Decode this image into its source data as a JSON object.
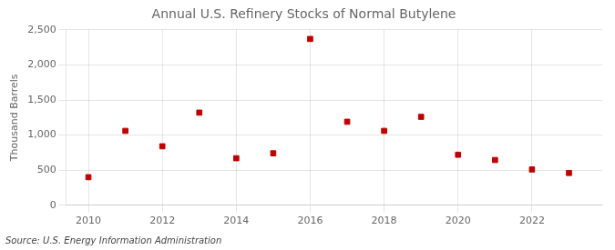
{
  "chart_data": {
    "type": "scatter",
    "title": "Annual U.S. Refinery Stocks of Normal Butylene",
    "ylabel": "Thousand Barrels",
    "annotation": "Source: U.S. Energy Information Administration",
    "x": [
      2010,
      2011,
      2012,
      2013,
      2014,
      2015,
      2016,
      2017,
      2018,
      2019,
      2020,
      2021,
      2022,
      2023
    ],
    "values": [
      400,
      1060,
      840,
      1320,
      670,
      740,
      2370,
      1190,
      1060,
      1260,
      720,
      645,
      510,
      460
    ],
    "color": "#c00000",
    "marker": "square",
    "xlim": [
      2009.4,
      2023.9
    ],
    "xticks": [
      2010,
      2012,
      2014,
      2016,
      2018,
      2020,
      2022
    ],
    "ylim": [
      0,
      2500
    ],
    "yticks": [
      0,
      500,
      {
        "value": 1000,
        "label": "1,000"
      },
      {
        "value": 1500,
        "label": "1,500"
      },
      {
        "value": 2000,
        "label": "2,000"
      },
      {
        "value": 2500,
        "label": "2,500"
      }
    ],
    "grid": true
  }
}
